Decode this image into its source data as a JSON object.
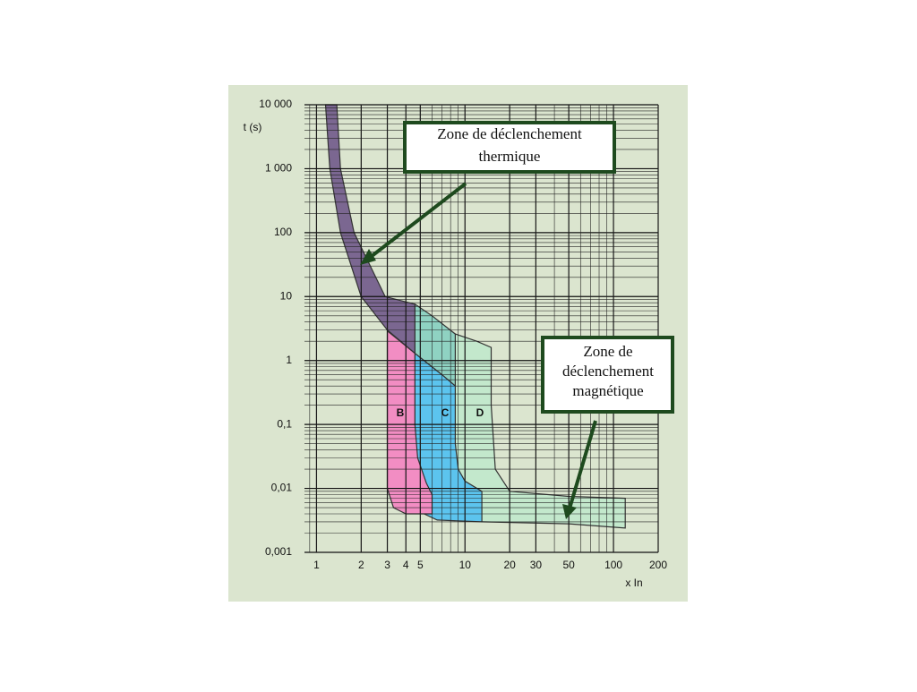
{
  "chart_data": {
    "type": "area",
    "y_label": "t (s)",
    "x_label": "x In",
    "log_x": true,
    "log_y": true,
    "grid": true,
    "minor_grid": true,
    "xlim": [
      0.83,
      200
    ],
    "ylim": [
      0.001,
      10000
    ],
    "xticks": [
      1,
      2,
      3,
      4,
      5,
      10,
      20,
      30,
      50,
      100,
      200
    ],
    "yticks": [
      {
        "value": 10000,
        "label": "10 000"
      },
      {
        "value": 1000,
        "label": "1 000"
      },
      100,
      10,
      1,
      {
        "value": 0.1,
        "label": "0,1"
      },
      {
        "value": 0.01,
        "label": "0,01"
      },
      {
        "value": 0.001,
        "label": "0,001"
      }
    ],
    "series": [
      {
        "name": "D",
        "color": "#c3e8cc",
        "x": [
          8.6,
          12,
          15,
          15,
          16,
          20,
          50,
          120,
          120,
          50,
          13,
          10,
          9,
          8.6
        ],
        "values": [
          2.6,
          2,
          1.6,
          0.2,
          0.02,
          0.009,
          0.0075,
          0.007,
          0.0024,
          0.0028,
          0.003,
          0.004,
          0.01,
          0.05
        ]
      },
      {
        "name": "C",
        "color": "#5cc4ee",
        "x": [
          4.6,
          7,
          8.6,
          8.6,
          9,
          10,
          13,
          13,
          6.5,
          5.3,
          4.9,
          4.6
        ],
        "values": [
          1.3,
          0.6,
          0.4,
          0.05,
          0.02,
          0.013,
          0.009,
          0.003,
          0.0032,
          0.004,
          0.007,
          0.1
        ]
      },
      {
        "name": "B",
        "color": "#f28dc3",
        "x": [
          3,
          4.6,
          4.6,
          4.8,
          5.5,
          6,
          6,
          4,
          3.3,
          3
        ],
        "values": [
          2.9,
          1.3,
          0.1,
          0.03,
          0.012,
          0.008,
          0.004,
          0.004,
          0.005,
          0.01
        ]
      },
      {
        "color": "#8fd2c2",
        "x": [
          4.6,
          6,
          8.6,
          8.6,
          7,
          4.6
        ],
        "values": [
          7.6,
          5,
          2.6,
          0.4,
          0.6,
          1.3
        ]
      },
      {
        "color": "#7b6791",
        "x": [
          1.15,
          1.23,
          1.45,
          2,
          3,
          4.6,
          4.6,
          2.9,
          1.79,
          1.45,
          1.37
        ],
        "values": [
          10000,
          1000,
          100,
          10,
          3,
          1.3,
          7.6,
          10,
          100,
          1000,
          10000
        ]
      }
    ],
    "annotations": [
      {
        "lines": [
          "Zone de déclenchement",
          "thermique"
        ]
      },
      {
        "lines": [
          "Zone de",
          "déclenchement",
          "magnétique"
        ]
      }
    ]
  }
}
